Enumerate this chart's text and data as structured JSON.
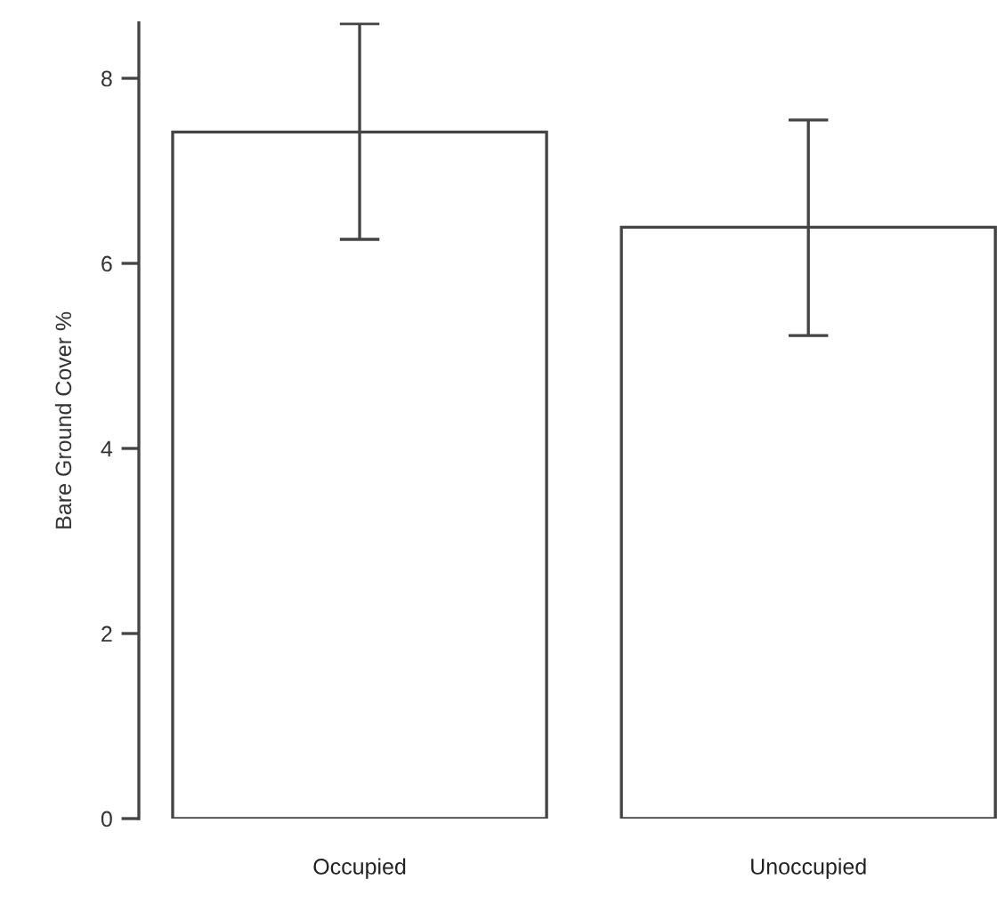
{
  "chart_data": {
    "type": "bar",
    "ylabel": "Bare Ground Cover %",
    "categories": [
      "Occupied",
      "Unoccupied"
    ],
    "series": [
      {
        "color": "#ffffff",
        "values": [
          7.42,
          6.39
        ],
        "errors": [
          [
            6.26,
            8.59
          ],
          [
            5.22,
            7.55
          ]
        ]
      }
    ],
    "ylim": [
      0,
      8.6
    ],
    "yticks": [
      0,
      2,
      4,
      6,
      8
    ]
  }
}
